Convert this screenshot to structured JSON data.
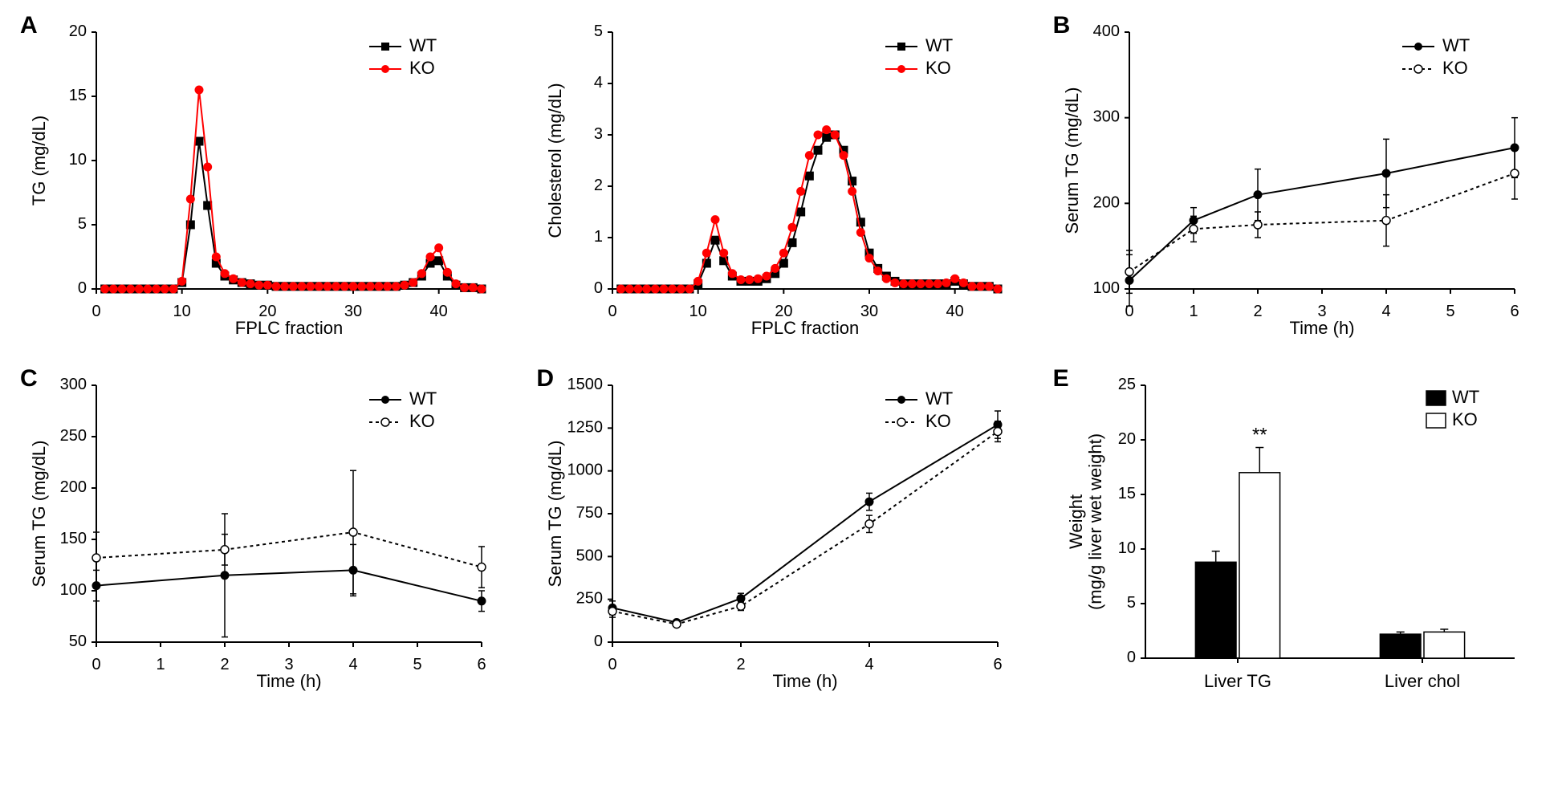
{
  "panelA": {
    "label": "A",
    "tg": {
      "xlabel": "FPLC fraction",
      "ylabel": "TG (mg/dL)",
      "xlim": [
        0,
        45
      ],
      "ylim": [
        0,
        20
      ],
      "xticks": [
        0,
        10,
        20,
        30,
        40
      ],
      "yticks": [
        0,
        5,
        10,
        15,
        20
      ],
      "wt_color": "#000000",
      "ko_color": "#ff0000",
      "wt_marker": "square",
      "ko_marker": "circle",
      "legend": [
        "WT",
        "KO"
      ],
      "x": [
        1,
        2,
        3,
        4,
        5,
        6,
        7,
        8,
        9,
        10,
        11,
        12,
        13,
        14,
        15,
        16,
        17,
        18,
        19,
        20,
        21,
        22,
        23,
        24,
        25,
        26,
        27,
        28,
        29,
        30,
        31,
        32,
        33,
        34,
        35,
        36,
        37,
        38,
        39,
        40,
        41,
        42,
        43,
        44,
        45
      ],
      "wt_y": [
        0,
        0,
        0,
        0,
        0,
        0,
        0,
        0,
        0,
        0.5,
        5,
        11.5,
        6.5,
        2,
        1,
        0.7,
        0.5,
        0.4,
        0.3,
        0.3,
        0.2,
        0.2,
        0.2,
        0.2,
        0.2,
        0.2,
        0.2,
        0.2,
        0.2,
        0.2,
        0.2,
        0.2,
        0.2,
        0.2,
        0.2,
        0.3,
        0.5,
        1,
        2,
        2.2,
        1,
        0.3,
        0.1,
        0.1,
        0
      ],
      "ko_y": [
        0,
        0,
        0,
        0,
        0,
        0,
        0,
        0,
        0,
        0.6,
        7,
        15.5,
        9.5,
        2.5,
        1.2,
        0.8,
        0.5,
        0.4,
        0.3,
        0.3,
        0.2,
        0.2,
        0.2,
        0.2,
        0.2,
        0.2,
        0.2,
        0.2,
        0.2,
        0.2,
        0.2,
        0.2,
        0.2,
        0.2,
        0.2,
        0.3,
        0.5,
        1.2,
        2.5,
        3.2,
        1.3,
        0.4,
        0.1,
        0.1,
        0
      ]
    },
    "chol": {
      "xlabel": "FPLC fraction",
      "ylabel": "Cholesterol (mg/dL)",
      "xlim": [
        0,
        45
      ],
      "ylim": [
        0,
        5
      ],
      "xticks": [
        0,
        10,
        20,
        30,
        40
      ],
      "yticks": [
        0,
        1,
        2,
        3,
        4,
        5
      ],
      "wt_color": "#000000",
      "ko_color": "#ff0000",
      "legend": [
        "WT",
        "KO"
      ],
      "x": [
        1,
        2,
        3,
        4,
        5,
        6,
        7,
        8,
        9,
        10,
        11,
        12,
        13,
        14,
        15,
        16,
        17,
        18,
        19,
        20,
        21,
        22,
        23,
        24,
        25,
        26,
        27,
        28,
        29,
        30,
        31,
        32,
        33,
        34,
        35,
        36,
        37,
        38,
        39,
        40,
        41,
        42,
        43,
        44,
        45
      ],
      "wt_y": [
        0,
        0,
        0,
        0,
        0,
        0,
        0,
        0,
        0,
        0.1,
        0.5,
        0.95,
        0.55,
        0.25,
        0.15,
        0.15,
        0.15,
        0.2,
        0.3,
        0.5,
        0.9,
        1.5,
        2.2,
        2.7,
        2.95,
        3.0,
        2.7,
        2.1,
        1.3,
        0.7,
        0.4,
        0.25,
        0.15,
        0.1,
        0.1,
        0.1,
        0.1,
        0.1,
        0.1,
        0.15,
        0.1,
        0.05,
        0.05,
        0.05,
        0
      ],
      "ko_y": [
        0,
        0,
        0,
        0,
        0,
        0,
        0,
        0,
        0,
        0.15,
        0.7,
        1.35,
        0.7,
        0.3,
        0.18,
        0.18,
        0.2,
        0.25,
        0.4,
        0.7,
        1.2,
        1.9,
        2.6,
        3.0,
        3.1,
        3.0,
        2.6,
        1.9,
        1.1,
        0.6,
        0.35,
        0.2,
        0.12,
        0.1,
        0.1,
        0.1,
        0.1,
        0.1,
        0.12,
        0.2,
        0.12,
        0.05,
        0.05,
        0.05,
        0
      ]
    }
  },
  "panelB": {
    "label": "B",
    "xlabel": "Time (h)",
    "ylabel": "Serum TG (mg/dL)",
    "xlim": [
      0,
      6
    ],
    "ylim": [
      100,
      400
    ],
    "xticks": [
      0,
      1,
      2,
      3,
      4,
      5,
      6
    ],
    "yticks": [
      100,
      200,
      300,
      400
    ],
    "legend": [
      "WT",
      "KO"
    ],
    "wt_color": "#000000",
    "ko_color": "#000000",
    "wt_marker": "filled-circle",
    "ko_marker": "open-circle",
    "wt_line": "solid",
    "ko_line": "dashed",
    "x": [
      0,
      1,
      2,
      4,
      6
    ],
    "wt_y": [
      110,
      180,
      210,
      235,
      265
    ],
    "wt_err": [
      30,
      15,
      30,
      40,
      35
    ],
    "ko_y": [
      120,
      170,
      175,
      180,
      235
    ],
    "ko_err": [
      25,
      15,
      15,
      30,
      30
    ]
  },
  "panelC": {
    "label": "C",
    "xlabel": "Time (h)",
    "ylabel": "Serum TG (mg/dL)",
    "xlim": [
      0,
      6
    ],
    "ylim": [
      50,
      300
    ],
    "xticks": [
      0,
      1,
      2,
      3,
      4,
      5,
      6
    ],
    "yticks": [
      50,
      100,
      150,
      200,
      250,
      300
    ],
    "legend": [
      "WT",
      "KO"
    ],
    "wt_color": "#000000",
    "ko_color": "#000000",
    "wt_marker": "filled-circle",
    "ko_marker": "open-circle",
    "wt_line": "solid",
    "ko_line": "dashed",
    "x": [
      0,
      2,
      4,
      6
    ],
    "wt_y": [
      105,
      115,
      120,
      90
    ],
    "wt_err": [
      15,
      60,
      25,
      10
    ],
    "ko_y": [
      132,
      140,
      157,
      123
    ],
    "ko_err": [
      25,
      15,
      60,
      20
    ]
  },
  "panelD": {
    "label": "D",
    "xlabel": "Time (h)",
    "ylabel": "Serum TG (mg/dL)",
    "xlim": [
      0,
      6
    ],
    "ylim": [
      0,
      1500
    ],
    "xticks": [
      0,
      2,
      4,
      6
    ],
    "yticks": [
      0,
      250,
      500,
      750,
      1000,
      1250,
      1500
    ],
    "legend": [
      "WT",
      "KO"
    ],
    "wt_color": "#000000",
    "ko_color": "#000000",
    "wt_marker": "filled-circle",
    "ko_marker": "open-circle",
    "wt_line": "solid",
    "ko_line": "dashed",
    "x": [
      0,
      1,
      2,
      4,
      6
    ],
    "wt_y": [
      200,
      115,
      255,
      820,
      1270
    ],
    "wt_err": [
      40,
      15,
      30,
      50,
      80
    ],
    "ko_y": [
      180,
      105,
      210,
      690,
      1230
    ],
    "ko_err": [
      35,
      15,
      25,
      50,
      60
    ]
  },
  "panelE": {
    "label": "E",
    "xlabel_categories": [
      "Liver TG",
      "Liver chol"
    ],
    "ylabel": "Weight\n(mg/g liver wet weight)",
    "ylim": [
      0,
      25
    ],
    "yticks": [
      0,
      5,
      10,
      15,
      20,
      25
    ],
    "legend": [
      "WT",
      "KO"
    ],
    "wt_color": "#000000",
    "ko_color": "#ffffff",
    "ko_border": "#000000",
    "sig_label": "**",
    "groups": [
      {
        "name": "Liver TG",
        "wt": 8.8,
        "wt_err": 1.0,
        "ko": 17.0,
        "ko_err": 2.3,
        "sig": true
      },
      {
        "name": "Liver chol",
        "wt": 2.2,
        "wt_err": 0.2,
        "ko": 2.4,
        "ko_err": 0.25,
        "sig": false
      }
    ]
  },
  "style": {
    "axis_color": "#000000",
    "axis_width": 2,
    "tick_len": 6,
    "font_size_label": 22,
    "font_size_tick": 20,
    "font_size_legend": 22,
    "font_size_panel": 30,
    "marker_size": 5,
    "line_width": 2
  }
}
